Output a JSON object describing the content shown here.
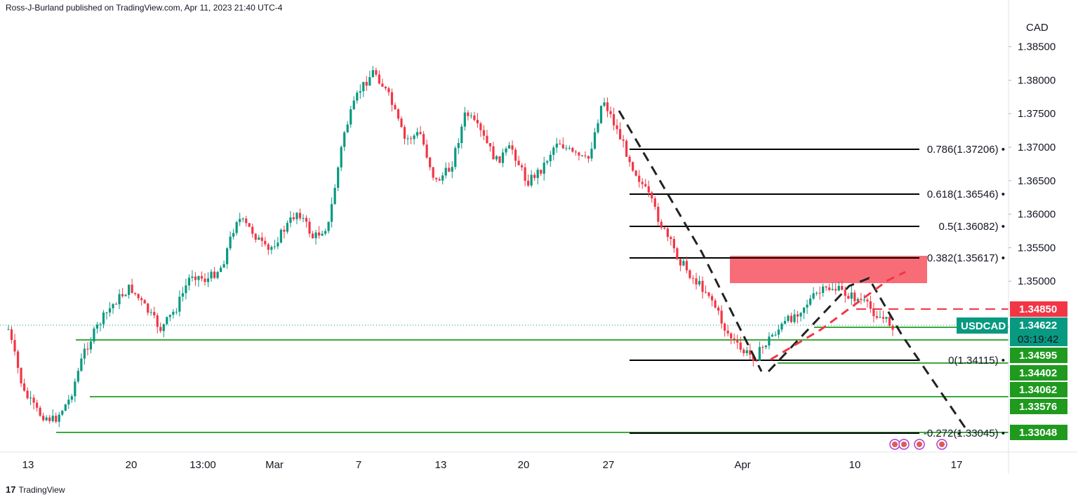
{
  "header": {
    "attribution": "Ross-J-Burland published on TradingView.com, Apr 11, 2023 21:40 UTC-4"
  },
  "footer": {
    "brand": "TradingView",
    "logo": "17"
  },
  "chart_data": {
    "type": "candlestick",
    "symbol": "USDCAD",
    "currency_label": "CAD",
    "ylim": [
      1.3245,
      1.3905
    ],
    "y_ticks": [
      "1.38500",
      "1.38000",
      "1.37500",
      "1.37000",
      "1.36500",
      "1.36000",
      "1.35500",
      "1.35000"
    ],
    "x_ticks": [
      "13",
      "20",
      "13:00",
      "Mar",
      "7",
      "13",
      "20",
      "27",
      "Apr",
      "10",
      "17"
    ],
    "price_path": [
      1.349,
      1.342,
      1.3365,
      1.3318,
      1.333,
      1.34,
      1.3465,
      1.349,
      1.352,
      1.348,
      1.347,
      1.35,
      1.354,
      1.353,
      1.357,
      1.361,
      1.356,
      1.36,
      1.359,
      1.362,
      1.358,
      1.36,
      1.37,
      1.379,
      1.383,
      1.38,
      1.376,
      1.377,
      1.368,
      1.37,
      1.372,
      1.374,
      1.369,
      1.371,
      1.367,
      1.368,
      1.374,
      1.371,
      1.37,
      1.378,
      1.373,
      1.369,
      1.365,
      1.362,
      1.356,
      1.353,
      1.3515,
      1.347,
      1.344,
      1.342,
      1.344,
      1.347,
      1.349,
      1.35,
      1.352,
      1.3505,
      1.35,
      1.348,
      1.3462
    ],
    "fib_levels": [
      {
        "label": "0.786(1.37206)",
        "value": 1.37206
      },
      {
        "label": "0.618(1.36546)",
        "value": 1.36546
      },
      {
        "label": "0.5(1.36082)",
        "value": 1.36082
      },
      {
        "label": "0.382(1.35617)",
        "value": 1.35617
      },
      {
        "label": "0(1.34115)",
        "value": 1.34115
      },
      {
        "label": "-0.272(1.33045)",
        "value": 1.33045
      }
    ],
    "supply_zone": {
      "top": 1.3563,
      "bottom": 1.3523,
      "color": "#f7525f"
    },
    "resistance_dashed": {
      "value": 1.3485,
      "color": "#f23645"
    },
    "support_lines": [
      1.34595,
      1.34402,
      1.33576,
      1.33048
    ],
    "price_tags": [
      {
        "value": 1.3485,
        "text": "1.34850",
        "color": "#f23645"
      },
      {
        "value": 1.34595,
        "text": "1.34595",
        "color": "#1f9a1f"
      },
      {
        "value": 1.34402,
        "text": "1.34402",
        "color": "#1f9a1f"
      },
      {
        "value": 1.34062,
        "text": "1.34062",
        "color": "#1f9a1f"
      },
      {
        "value": 1.33576,
        "text": "1.33576",
        "color": "#1f9a1f"
      },
      {
        "value": 1.33048,
        "text": "1.33048",
        "color": "#1f9a1f"
      }
    ],
    "current": {
      "symbol": "USDCAD",
      "price": "1.34622",
      "countdown": "03:19:42",
      "color": "#089981"
    },
    "colors": {
      "up": "#089981",
      "down": "#f23645",
      "fib": "#000000",
      "support": "#3da83d"
    }
  }
}
